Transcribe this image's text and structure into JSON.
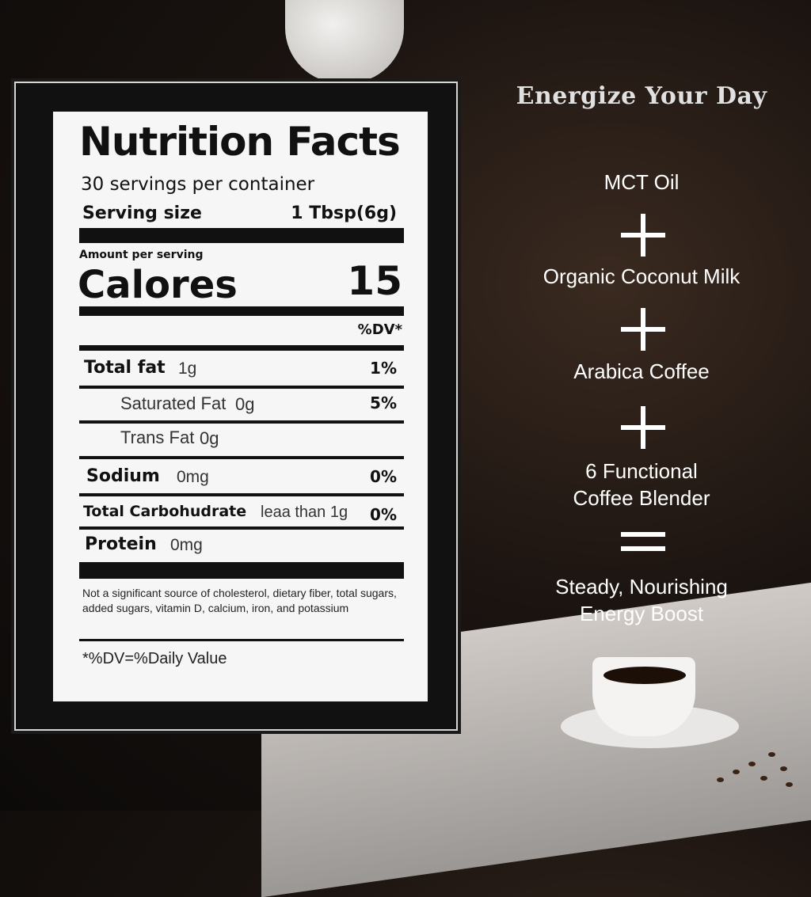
{
  "label": {
    "title": "Nutrition Facts",
    "servings": "30 servings per container",
    "serving_size_label": "Serving size",
    "serving_size_value": "1 Tbsp(6g)",
    "amount_per_serving": "Amount per serving",
    "calories_label": "Calores",
    "calories_value": "15",
    "dv_header": "%DV*",
    "rows": [
      {
        "name": "Total fat",
        "amount": "1g",
        "dv": "1%"
      },
      {
        "name": "Saturated Fat",
        "amount": "0g",
        "dv": "5%"
      },
      {
        "name": "Trans Fat",
        "amount": "0g",
        "dv": ""
      },
      {
        "name": "Sodium",
        "amount": "0mg",
        "dv": "0%"
      },
      {
        "name": "Total Carbohudrate",
        "amount": "leaa than 1g",
        "dv": "0%"
      },
      {
        "name": "Protein",
        "amount": "0mg",
        "dv": ""
      }
    ],
    "footnote": "Not a significant source of cholesterol, dietary fiber, total sugars, added sugars, vitamin D, calcium, iron, and potassium",
    "dv_note": "*%DV=%Daily Value"
  },
  "right": {
    "heading": "Energize Your Day",
    "ingredient_1": "MCT Oil",
    "ingredient_2": "Organic Coconut Milk",
    "ingredient_3": "Arabica Coffee",
    "ingredient_4_line1": "6 Functional",
    "ingredient_4_line2": "Coffee Blender",
    "result_line1": "Steady, Nourishing",
    "result_line2": "Energy Boost"
  }
}
